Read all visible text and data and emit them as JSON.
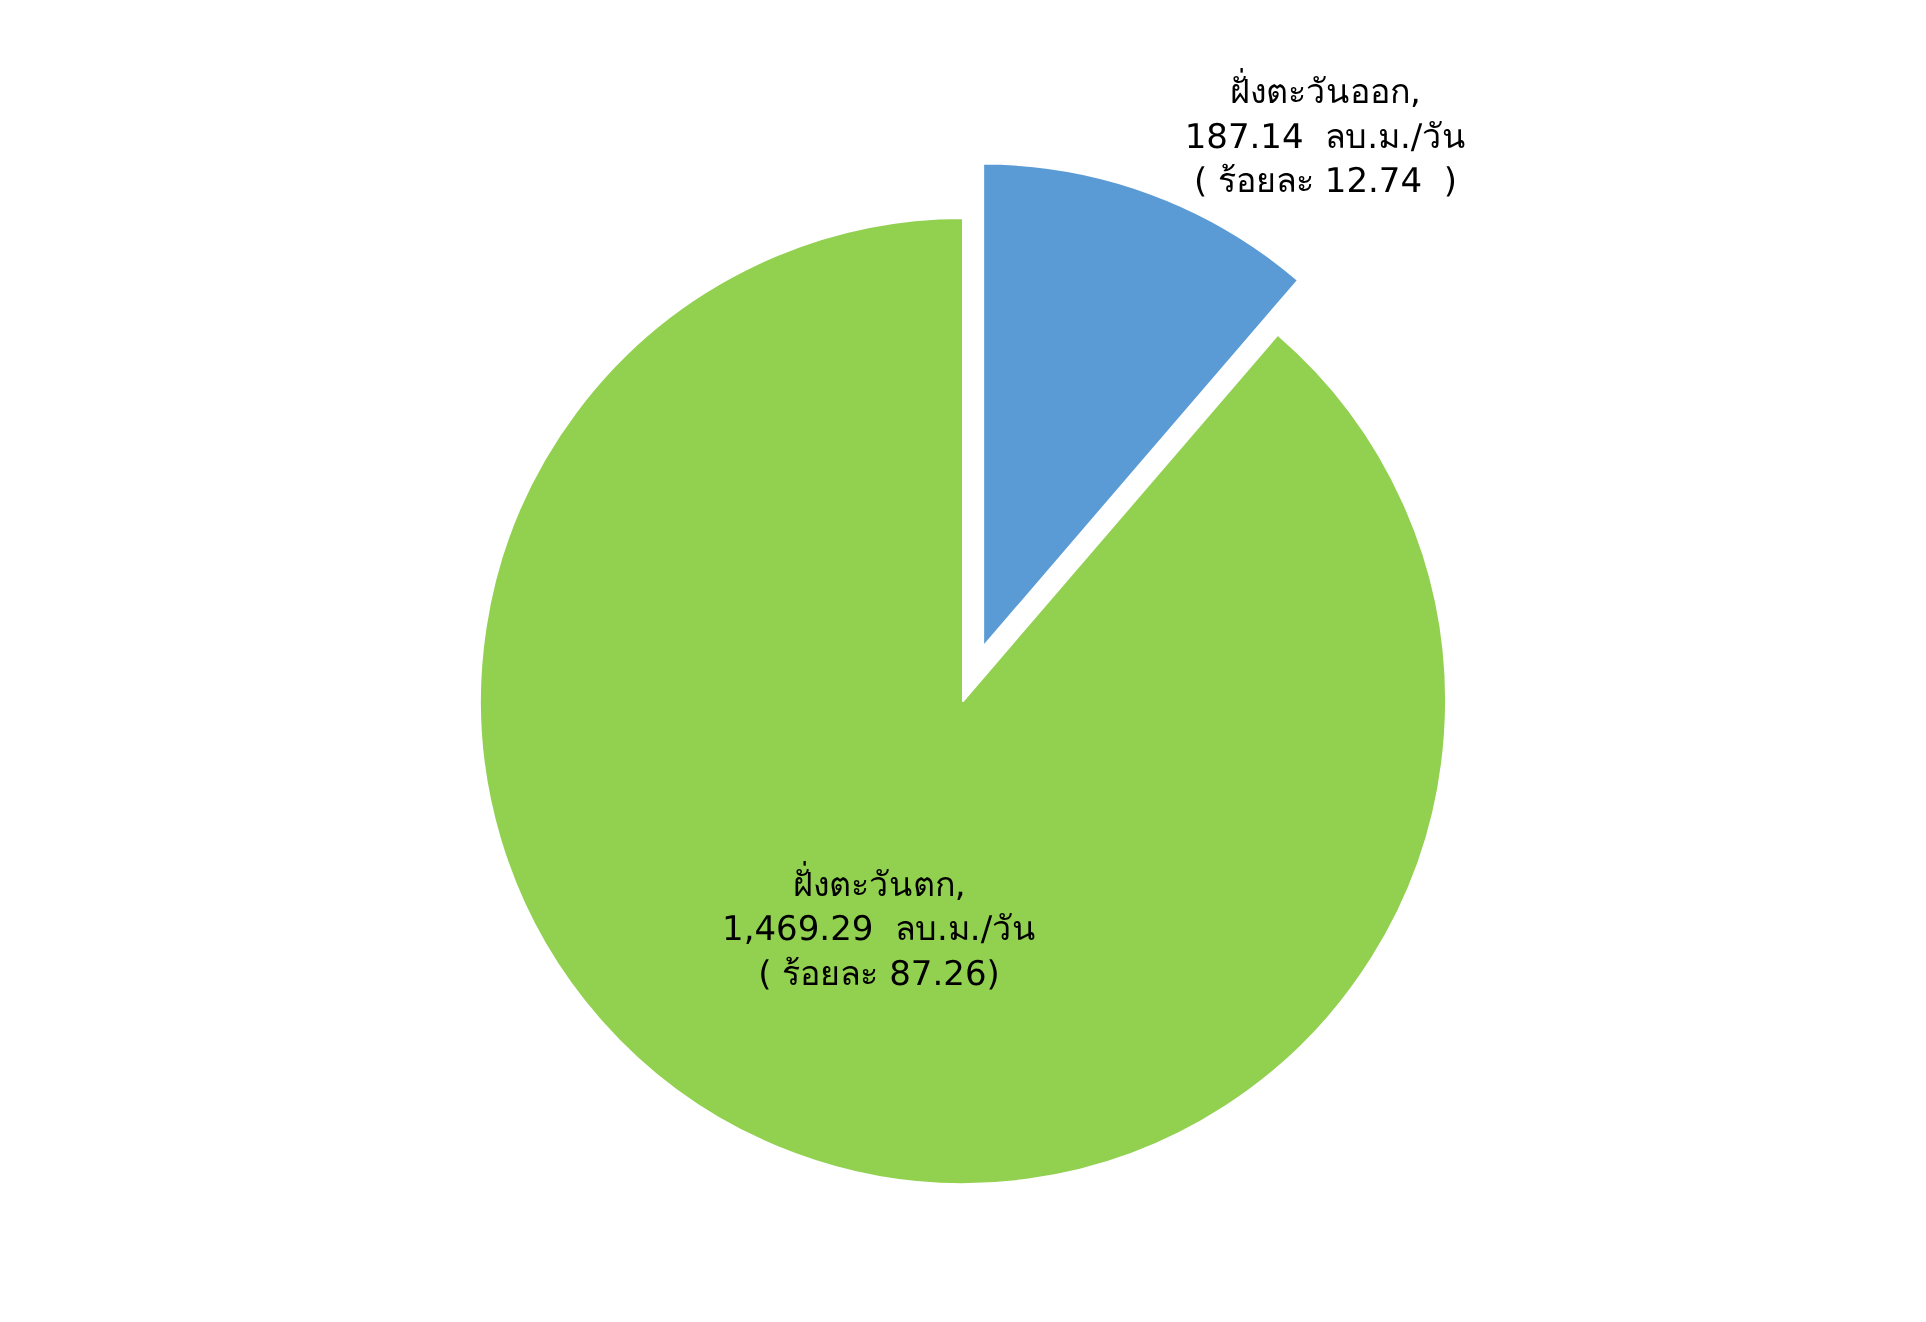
{
  "chart_data": {
    "type": "pie",
    "categories": [
      "ฝั่งตะวันออก",
      "ฝั่งตะวันตก"
    ],
    "values": [
      187.14,
      1469.29
    ],
    "colors": [
      "#5b9bd5",
      "#92d050"
    ],
    "value_labels": [
      ",\n187.14  ลบ.ม./วัน\n( ร้อยละ 12.74  )",
      ",\n1,469.29  ลบ.ม./วัน\n( ร้อยละ 87.26)"
    ],
    "legend": false
  }
}
